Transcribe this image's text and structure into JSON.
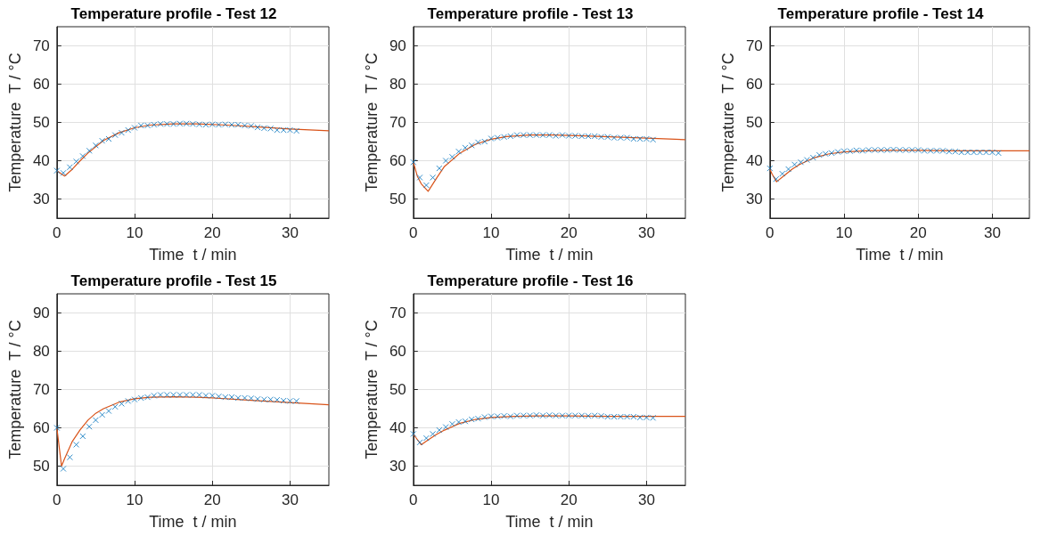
{
  "chart_data": [
    {
      "type": "scatter",
      "title": "Temperature profile - Test 12",
      "xlabel": "Time  t / min",
      "ylabel": "Temperature  T / °C",
      "xlim": [
        0,
        35
      ],
      "xticks": [
        0,
        10,
        20,
        30
      ],
      "ylim": [
        25,
        75
      ],
      "yticks": [
        30,
        40,
        50,
        60,
        70
      ],
      "grid": true,
      "marker": "cross",
      "x": [
        0,
        0.83,
        1.67,
        2.5,
        3.33,
        4.17,
        5,
        5.83,
        6.67,
        7.5,
        8.33,
        9.17,
        10,
        10.83,
        11.67,
        12.5,
        13.33,
        14.17,
        15,
        15.83,
        16.67,
        17.5,
        18.33,
        19.17,
        20,
        20.83,
        21.67,
        22.5,
        23.33,
        24.17,
        25,
        25.83,
        26.67,
        27.5,
        28.33,
        29.17,
        30,
        30.83
      ],
      "series": [
        {
          "color": "#0072bd",
          "values": [
            37.4,
            36.8,
            38.3,
            39.8,
            41.2,
            42.6,
            44,
            45.2,
            45.7,
            46.7,
            47.3,
            48,
            48.6,
            49.2,
            49.2,
            49.4,
            49.6,
            49.6,
            49.6,
            49.7,
            49.7,
            49.6,
            49.5,
            49.4,
            49.5,
            49.4,
            49.5,
            49.4,
            49.4,
            49.2,
            49.1,
            48.7,
            48.5,
            48.4,
            48,
            48,
            48,
            47.8
          ]
        },
        {
          "type": "line",
          "color": "#d95319",
          "marker": "none",
          "x": [
            0,
            1,
            2,
            3,
            4,
            6,
            8,
            10,
            12,
            15,
            18,
            22,
            26,
            30,
            35
          ],
          "values": [
            37.4,
            36,
            37.8,
            40,
            42,
            45.3,
            47.3,
            48.6,
            49.3,
            49.6,
            49.6,
            49.3,
            48.8,
            48.3,
            47.8
          ]
        }
      ]
    },
    {
      "type": "scatter",
      "title": "Temperature profile - Test 13",
      "xlabel": "Time  t / min",
      "ylabel": "Temperature  T / °C",
      "xlim": [
        0,
        35
      ],
      "xticks": [
        0,
        10,
        20,
        30
      ],
      "ylim": [
        45,
        95
      ],
      "yticks": [
        50,
        60,
        70,
        80,
        90
      ],
      "grid": true,
      "marker": "cross",
      "x": [
        0,
        0.83,
        1.67,
        2.5,
        3.33,
        4.17,
        5,
        5.83,
        6.67,
        7.5,
        8.33,
        9.17,
        10,
        10.83,
        11.67,
        12.5,
        13.33,
        14.17,
        15,
        15.83,
        16.67,
        17.5,
        18.33,
        19.17,
        20,
        20.83,
        21.67,
        22.5,
        23.33,
        24.17,
        25,
        25.83,
        26.67,
        27.5,
        28.33,
        29.17,
        30,
        30.83
      ],
      "series": [
        {
          "color": "#0072bd",
          "values": [
            59.6,
            55.6,
            53.6,
            55.6,
            58,
            60,
            61,
            62.4,
            63.4,
            64,
            64.8,
            65,
            65.8,
            66,
            66.2,
            66.4,
            66.7,
            66.7,
            66.7,
            66.7,
            66.7,
            66.7,
            66.5,
            66.7,
            66.5,
            66.5,
            66.4,
            66.4,
            66.4,
            66.2,
            66.2,
            66,
            66,
            66,
            65.7,
            65.7,
            65.7,
            65.5
          ]
        },
        {
          "type": "line",
          "color": "#d95319",
          "marker": "none",
          "x": [
            0,
            0.5,
            1,
            1.9,
            3,
            4,
            6,
            8,
            10,
            12,
            15,
            18,
            22,
            26,
            30,
            35
          ],
          "values": [
            59.6,
            56,
            54,
            52,
            55.5,
            58.5,
            62,
            64.3,
            65.6,
            66.3,
            66.7,
            66.7,
            66.5,
            66.2,
            65.9,
            65.5
          ]
        }
      ]
    },
    {
      "type": "scatter",
      "title": "Temperature profile - Test 14",
      "xlabel": "Time  t / min",
      "ylabel": "Temperature  T / °C",
      "xlim": [
        0,
        35
      ],
      "xticks": [
        0,
        10,
        20,
        30
      ],
      "ylim": [
        25,
        75
      ],
      "yticks": [
        30,
        40,
        50,
        60,
        70
      ],
      "grid": true,
      "marker": "cross",
      "x": [
        0,
        0.83,
        1.67,
        2.5,
        3.33,
        4.17,
        5,
        5.83,
        6.67,
        7.5,
        8.33,
        9.17,
        10,
        10.83,
        11.67,
        12.5,
        13.33,
        14.17,
        15,
        15.83,
        16.67,
        17.5,
        18.33,
        19.17,
        20,
        20.83,
        21.67,
        22.5,
        23.33,
        24.17,
        25,
        25.83,
        26.67,
        27.5,
        28.33,
        29.17,
        30,
        30.83
      ],
      "series": [
        {
          "color": "#0072bd",
          "values": [
            38,
            35.2,
            36.6,
            37.8,
            39,
            39.6,
            40.2,
            40.8,
            41.5,
            41.8,
            42,
            42.3,
            42.5,
            42.5,
            42.7,
            42.6,
            42.8,
            42.8,
            42.8,
            42.8,
            42.9,
            42.8,
            42.8,
            42.8,
            42.8,
            42.6,
            42.6,
            42.6,
            42.6,
            42.4,
            42.4,
            42.2,
            42.2,
            42.2,
            42.2,
            42.2,
            42.2,
            42
          ]
        },
        {
          "type": "line",
          "color": "#d95319",
          "marker": "none",
          "x": [
            0,
            0.3,
            0.9,
            2,
            3,
            4,
            6,
            8,
            10,
            13,
            16,
            20,
            25,
            30,
            35
          ],
          "values": [
            37.8,
            36.5,
            34.5,
            36.2,
            37.8,
            39,
            40.8,
            41.8,
            42.3,
            42.6,
            42.7,
            42.7,
            42.6,
            42.6,
            42.6
          ]
        }
      ]
    },
    {
      "type": "scatter",
      "title": "Temperature profile - Test 15",
      "xlabel": "Time  t / min",
      "ylabel": "Temperature  T / °C",
      "xlim": [
        0,
        35
      ],
      "xticks": [
        0,
        10,
        20,
        30
      ],
      "ylim": [
        45,
        95
      ],
      "yticks": [
        50,
        60,
        70,
        80,
        90
      ],
      "grid": true,
      "marker": "cross",
      "x": [
        0,
        0.83,
        1.67,
        2.5,
        3.33,
        4.17,
        5,
        5.83,
        6.67,
        7.5,
        8.33,
        9.17,
        10,
        10.83,
        11.67,
        12.5,
        13.33,
        14.17,
        15,
        15.83,
        16.67,
        17.5,
        18.33,
        19.17,
        20,
        20.83,
        21.67,
        22.5,
        23.33,
        24.17,
        25,
        25.83,
        26.67,
        27.5,
        28.33,
        29.17,
        30,
        30.83
      ],
      "series": [
        {
          "color": "#0072bd",
          "values": [
            60,
            49.3,
            52.3,
            55.6,
            57.8,
            60.3,
            62,
            63.4,
            64.4,
            65.5,
            66.3,
            67,
            67.4,
            67.8,
            68,
            68.4,
            68.6,
            68.6,
            68.6,
            68.6,
            68.6,
            68.6,
            68.6,
            68.4,
            68.4,
            68.2,
            68,
            68,
            67.8,
            67.8,
            67.7,
            67.5,
            67.4,
            67.4,
            67.3,
            67.1,
            67,
            67
          ]
        },
        {
          "type": "line",
          "color": "#d95319",
          "marker": "none",
          "x": [
            0,
            0.6,
            1,
            2,
            3,
            4,
            5,
            6,
            8,
            10,
            12,
            15,
            18,
            20,
            25,
            30,
            35
          ],
          "values": [
            60,
            50,
            52,
            56.5,
            59.5,
            62,
            63.8,
            65,
            66.7,
            67.6,
            68,
            68.1,
            68,
            67.8,
            67.2,
            66.6,
            66
          ]
        }
      ]
    },
    {
      "type": "scatter",
      "title": "Temperature profile - Test 16",
      "xlabel": "Time  t / min",
      "ylabel": "Temperature  T / °C",
      "xlim": [
        0,
        35
      ],
      "xticks": [
        0,
        10,
        20,
        30
      ],
      "ylim": [
        25,
        75
      ],
      "yticks": [
        30,
        40,
        50,
        60,
        70
      ],
      "grid": true,
      "marker": "cross",
      "x": [
        0,
        0.83,
        1.67,
        2.5,
        3.33,
        4.17,
        5,
        5.83,
        6.67,
        7.5,
        8.33,
        9.17,
        10,
        10.83,
        11.67,
        12.5,
        13.33,
        14.17,
        15,
        15.83,
        16.67,
        17.5,
        18.33,
        19.17,
        20,
        20.83,
        21.67,
        22.5,
        23.33,
        24.17,
        25,
        25.83,
        26.67,
        27.5,
        28.33,
        29.17,
        30,
        30.83
      ],
      "series": [
        {
          "color": "#0072bd",
          "values": [
            38.4,
            36.2,
            37.3,
            38.4,
            39.4,
            40.2,
            41,
            41.5,
            41.7,
            42.2,
            42.4,
            42.8,
            43,
            43,
            43.1,
            43,
            43.2,
            43.2,
            43.2,
            43.3,
            43.2,
            43.3,
            43.2,
            43.2,
            43.2,
            43.2,
            43.2,
            43.1,
            43.2,
            43.1,
            42.9,
            42.9,
            42.9,
            42.9,
            42.9,
            42.7,
            42.7,
            42.6
          ]
        },
        {
          "type": "line",
          "color": "#d95319",
          "marker": "none",
          "x": [
            0,
            0.3,
            1,
            2,
            3,
            4,
            6,
            8,
            10,
            13,
            16,
            20,
            25,
            30,
            35
          ],
          "values": [
            38.4,
            37.5,
            35.6,
            37,
            38.3,
            39.4,
            41.2,
            42.2,
            42.7,
            43,
            43.1,
            43.1,
            43,
            43,
            43
          ]
        }
      ]
    }
  ]
}
